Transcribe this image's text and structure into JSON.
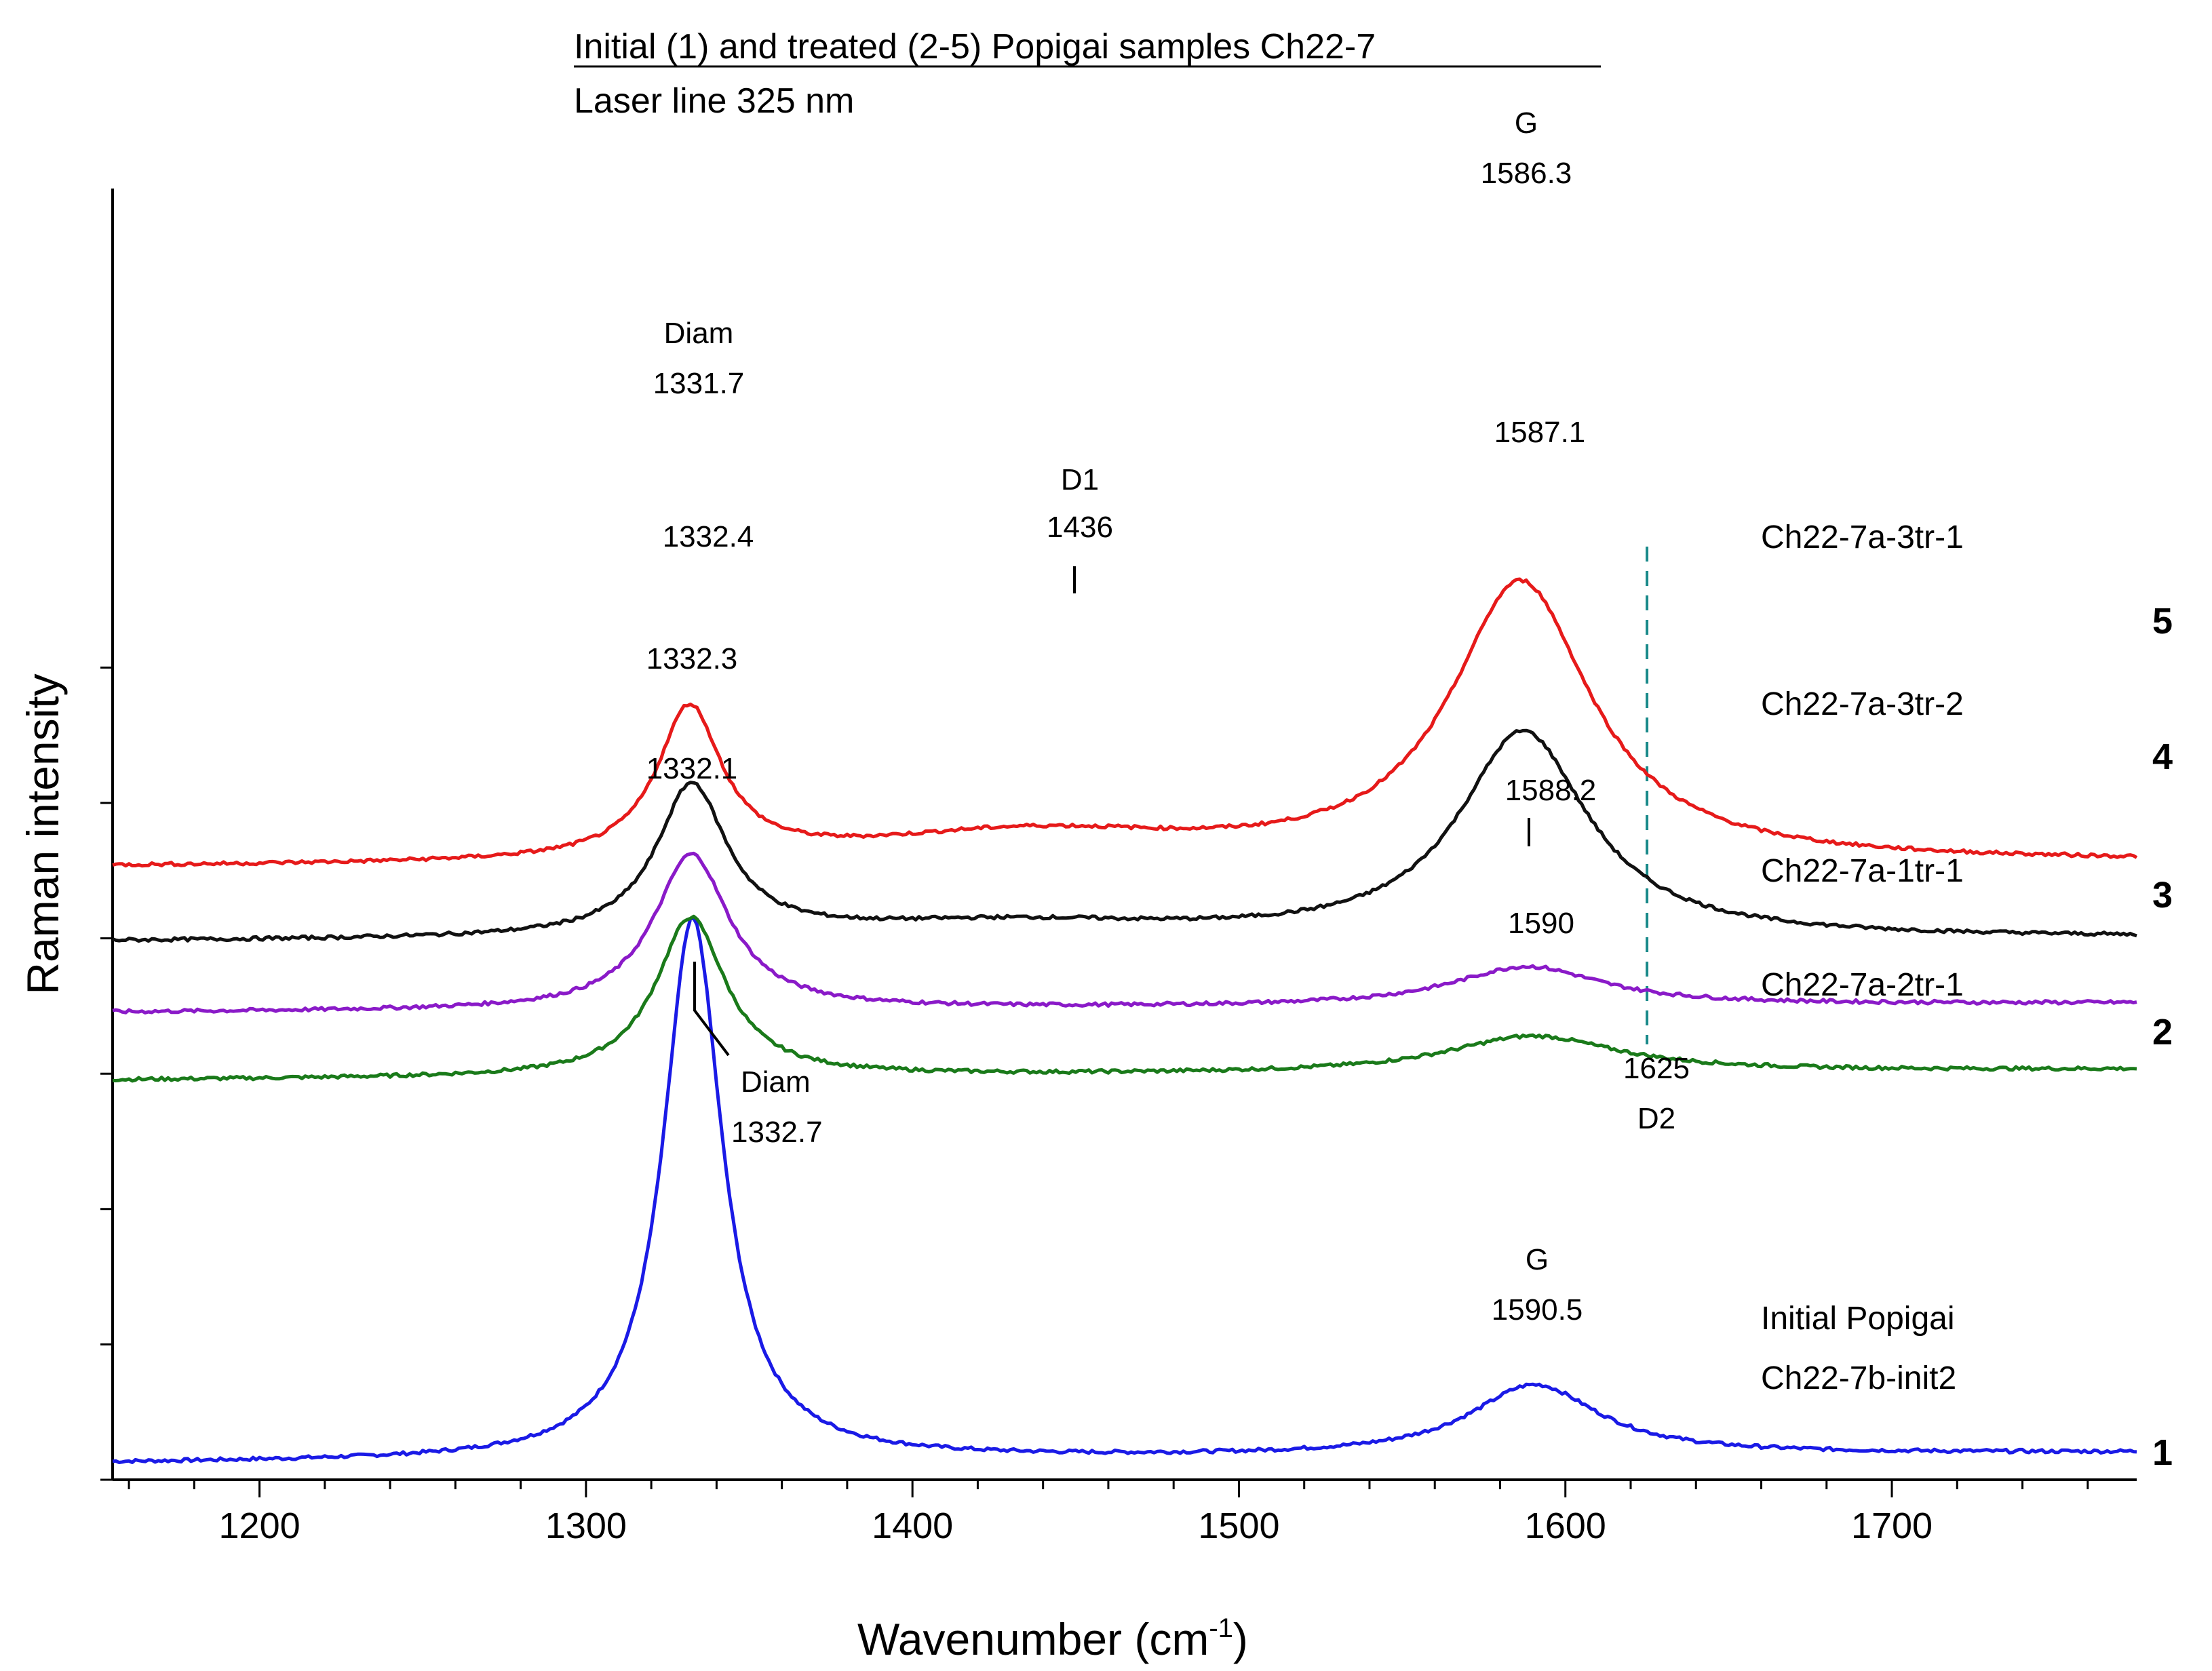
{
  "chart_data": {
    "type": "line",
    "title": "Initial (1) and treated (2-5) Popigai samples Ch22-7",
    "subtitle": "Laser line 325 nm",
    "xlabel": "Wavenumber (cm",
    "xlabel_sup": "-1",
    "xlabel_close": ")",
    "ylabel": "Raman intensity",
    "xlim": [
      1155,
      1775
    ],
    "ylim": [
      0,
      10
    ],
    "x_ticks": [
      "1200",
      "1300",
      "1400",
      "1500",
      "1600",
      "1700"
    ],
    "x_tick_values": [
      1200,
      1300,
      1400,
      1500,
      1600,
      1700
    ],
    "y_ticks": [
      0,
      1,
      2,
      3,
      4,
      5,
      6
    ],
    "grid": false,
    "series": [
      {
        "id": "1",
        "name": "Initial Popigai",
        "name2": "Ch22-7b-init2",
        "track": "1",
        "color": "#1a1ae6",
        "baseline": [
          0.12,
          0.2
        ],
        "peaks": [
          {
            "center": 1332.7,
            "height": 4.0,
            "width": 11
          },
          {
            "center": 1590.5,
            "height": 0.52,
            "width": 24
          }
        ]
      },
      {
        "id": "2",
        "name": "Ch22-7a-2tr-1",
        "track": "2",
        "color": "#1a7a1a",
        "baseline": [
          2.95,
          3.03
        ],
        "peaks": [
          {
            "center": 1332.1,
            "height": 1.18,
            "width": 13
          },
          {
            "center": 1590,
            "height": 0.27,
            "width": 32
          }
        ]
      },
      {
        "id": "3",
        "name": "Ch22-7a-1tr-1",
        "track": "3",
        "color": "#8a1ac8",
        "baseline": [
          3.45,
          3.52
        ],
        "peaks": [
          {
            "center": 1332.3,
            "height": 1.15,
            "width": 14
          },
          {
            "center": 1588.2,
            "height": 0.29,
            "width": 28
          }
        ]
      },
      {
        "id": "4",
        "name": "Ch22-7a-3tr-2",
        "track": "4",
        "color": "#111111",
        "baseline": [
          3.97,
          4.0
        ],
        "peaks": [
          {
            "center": 1332.4,
            "height": 1.12,
            "width": 13
          },
          {
            "center": 1430,
            "height": 0.12,
            "width": 70
          },
          {
            "center": 1587.1,
            "height": 1.52,
            "width": 24
          }
        ]
      },
      {
        "id": "5",
        "name": "Ch22-7a-3tr-1",
        "track": "5",
        "color": "#e61a1a",
        "baseline": [
          4.52,
          4.56
        ],
        "peaks": [
          {
            "center": 1331.7,
            "height": 1.12,
            "width": 12
          },
          {
            "center": 1436,
            "height": 0.22,
            "width": 65
          },
          {
            "center": 1586.3,
            "height": 2.06,
            "width": 26
          }
        ]
      }
    ],
    "annotations": {
      "diam5": [
        "Diam",
        "1331.7"
      ],
      "d1": [
        "D1",
        "1436"
      ],
      "g5": [
        "G",
        "1586.3"
      ],
      "p4_diam": "1332.4",
      "p4_g": "1587.1",
      "p3_diam": "1332.3",
      "p3_g": "1588.2",
      "p2_diam": "1332.1",
      "p2_g": "1590",
      "diam1": [
        "Diam",
        "1332.7"
      ],
      "g1": [
        "G",
        "1590.5"
      ],
      "d2": [
        "1625",
        "D2"
      ]
    },
    "d2_line": {
      "x": 1625,
      "color": "#1a8a8a"
    }
  }
}
